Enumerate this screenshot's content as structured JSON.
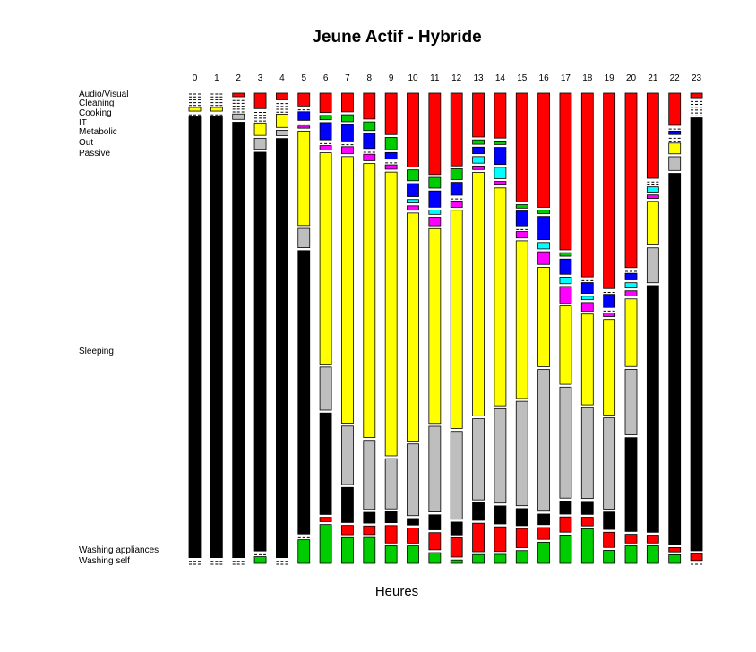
{
  "chart_data": {
    "type": "mosaic",
    "title": "Jeune Actif - Hybride",
    "xlabel": "Heures",
    "hours": [
      "0",
      "1",
      "2",
      "3",
      "4",
      "5",
      "6",
      "7",
      "8",
      "9",
      "10",
      "11",
      "12",
      "13",
      "14",
      "15",
      "16",
      "17",
      "18",
      "19",
      "20",
      "21",
      "22",
      "23"
    ],
    "categories": [
      {
        "name": "Audio/Visual",
        "color": "#ff0000"
      },
      {
        "name": "Cleaning",
        "color": "#00cd00"
      },
      {
        "name": "Cooking",
        "color": "#0000ff"
      },
      {
        "name": "IT",
        "color": "#00ffff"
      },
      {
        "name": "Metabolic",
        "color": "#ff00ff"
      },
      {
        "name": "Out",
        "color": "#ffff00"
      },
      {
        "name": "Passive",
        "color": "#bebebe"
      },
      {
        "name": "Sleeping",
        "color": "#000000"
      },
      {
        "name": "Washing appliances",
        "color": "#ff0000"
      },
      {
        "name": "Washing self",
        "color": "#00cd00"
      }
    ],
    "values": [
      [
        0,
        0,
        0,
        0,
        0,
        0.8,
        0,
        97.0,
        0,
        0
      ],
      [
        0,
        0,
        0,
        0,
        0,
        0.8,
        0,
        97.5,
        0,
        0
      ],
      [
        0.8,
        0,
        0,
        0,
        0,
        0,
        1.2,
        96.5,
        0,
        0
      ],
      [
        3.5,
        0,
        0,
        0,
        0,
        2.8,
        2.5,
        90.0,
        0,
        1.5
      ],
      [
        1.5,
        0,
        0,
        0,
        0,
        3.0,
        1.2,
        94.5,
        0,
        0
      ],
      [
        3.0,
        0,
        2.0,
        0,
        0.5,
        22.0,
        4.5,
        66.0,
        0,
        5.5
      ],
      [
        4.5,
        1.0,
        4.0,
        0,
        1.0,
        49.0,
        10.0,
        23.5,
        1.0,
        9.0
      ],
      [
        4.0,
        1.5,
        3.5,
        0,
        1.5,
        57.0,
        12.5,
        7.5,
        2.0,
        5.5
      ],
      [
        6.0,
        2.0,
        3.5,
        0,
        1.5,
        63.5,
        16.0,
        2.5,
        2.0,
        6.0
      ],
      [
        9.5,
        2.8,
        1.5,
        0,
        1.0,
        65.0,
        11.5,
        2.5,
        4.0,
        4.0
      ],
      [
        17.0,
        2.5,
        3.0,
        0.8,
        1.0,
        52.5,
        16.5,
        1.5,
        3.5,
        4.0
      ],
      [
        19.0,
        2.5,
        3.8,
        1.0,
        2.0,
        45.5,
        20.0,
        3.5,
        4.0,
        2.5
      ],
      [
        17.0,
        2.5,
        3.0,
        0,
        1.5,
        51.0,
        20.5,
        3.0,
        4.5,
        0.8
      ],
      [
        10.0,
        1.0,
        1.5,
        1.5,
        0.8,
        55.5,
        18.5,
        4.0,
        6.5,
        2.0
      ],
      [
        10.0,
        0.8,
        3.8,
        2.5,
        0.8,
        48.5,
        21.0,
        4.0,
        5.5,
        2.0
      ],
      [
        25.5,
        0.8,
        3.5,
        0,
        1.5,
        37.0,
        24.5,
        4.0,
        4.5,
        3.0
      ],
      [
        27.0,
        0.8,
        5.5,
        1.5,
        3.0,
        23.5,
        33.5,
        2.5,
        2.8,
        5.0
      ],
      [
        36.0,
        0.8,
        3.5,
        1.5,
        3.8,
        18.0,
        25.5,
        3.0,
        3.5,
        6.5
      ],
      [
        42.5,
        0,
        2.5,
        0.8,
        2.0,
        21.0,
        21.0,
        3.0,
        2.0,
        8.0
      ],
      [
        45.0,
        0,
        3.0,
        0,
        0.8,
        22.0,
        21.0,
        4.0,
        3.5,
        3.0
      ],
      [
        40.0,
        0,
        1.5,
        1.2,
        1.2,
        15.5,
        15.0,
        21.5,
        2.0,
        4.0
      ],
      [
        19.5,
        0,
        0,
        1.2,
        0.8,
        10.0,
        8.0,
        56.5,
        1.8,
        4.0
      ],
      [
        7.5,
        0,
        0.8,
        0,
        0,
        2.5,
        3.2,
        86.5,
        1.0,
        2.0
      ],
      [
        1.0,
        0,
        0,
        0,
        0,
        0,
        0,
        94.5,
        1.5,
        0
      ]
    ]
  }
}
